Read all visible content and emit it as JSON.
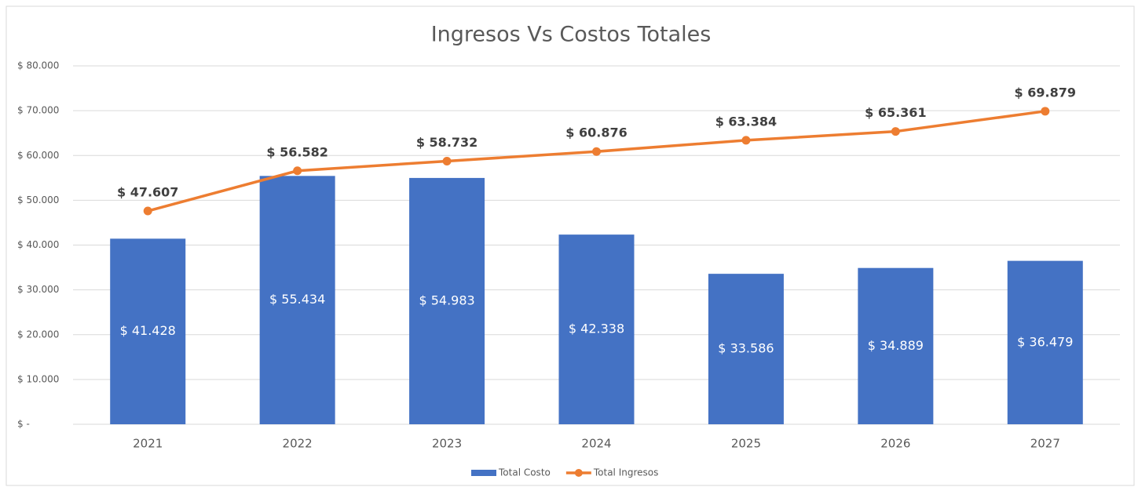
{
  "chart_data": {
    "type": "combo",
    "title": "Ingresos Vs Costos Totales",
    "categories": [
      "2021",
      "2022",
      "2023",
      "2024",
      "2025",
      "2026",
      "2027"
    ],
    "series": [
      {
        "name": "Total Costo",
        "type": "bar",
        "color": "#4472c4",
        "values": [
          41428,
          55434,
          54983,
          42338,
          33586,
          34889,
          36479
        ],
        "value_labels": [
          "$ 41.428",
          "$ 55.434",
          "$ 54.983",
          "$ 42.338",
          "$ 33.586",
          "$ 34.889",
          "$ 36.479"
        ]
      },
      {
        "name": "Total Ingresos",
        "type": "line",
        "color": "#ed7d31",
        "values": [
          47607,
          56582,
          58732,
          60876,
          63384,
          65361,
          69879
        ],
        "value_labels": [
          "$ 47.607",
          "$ 56.582",
          "$ 58.732",
          "$ 60.876",
          "$ 63.384",
          "$ 65.361",
          "$ 69.879"
        ]
      }
    ],
    "ylim": [
      0,
      80000
    ],
    "yticks": [
      {
        "value": 0,
        "label": "$ -"
      },
      {
        "value": 10000,
        "label": "$ 10.000"
      },
      {
        "value": 20000,
        "label": "$ 20.000"
      },
      {
        "value": 30000,
        "label": "$ 30.000"
      },
      {
        "value": 40000,
        "label": "$ 40.000"
      },
      {
        "value": 50000,
        "label": "$ 50.000"
      },
      {
        "value": 60000,
        "label": "$ 60.000"
      },
      {
        "value": 70000,
        "label": "$ 70.000"
      },
      {
        "value": 80000,
        "label": "$ 80.000"
      }
    ],
    "grid": true,
    "legend": "bottom"
  }
}
